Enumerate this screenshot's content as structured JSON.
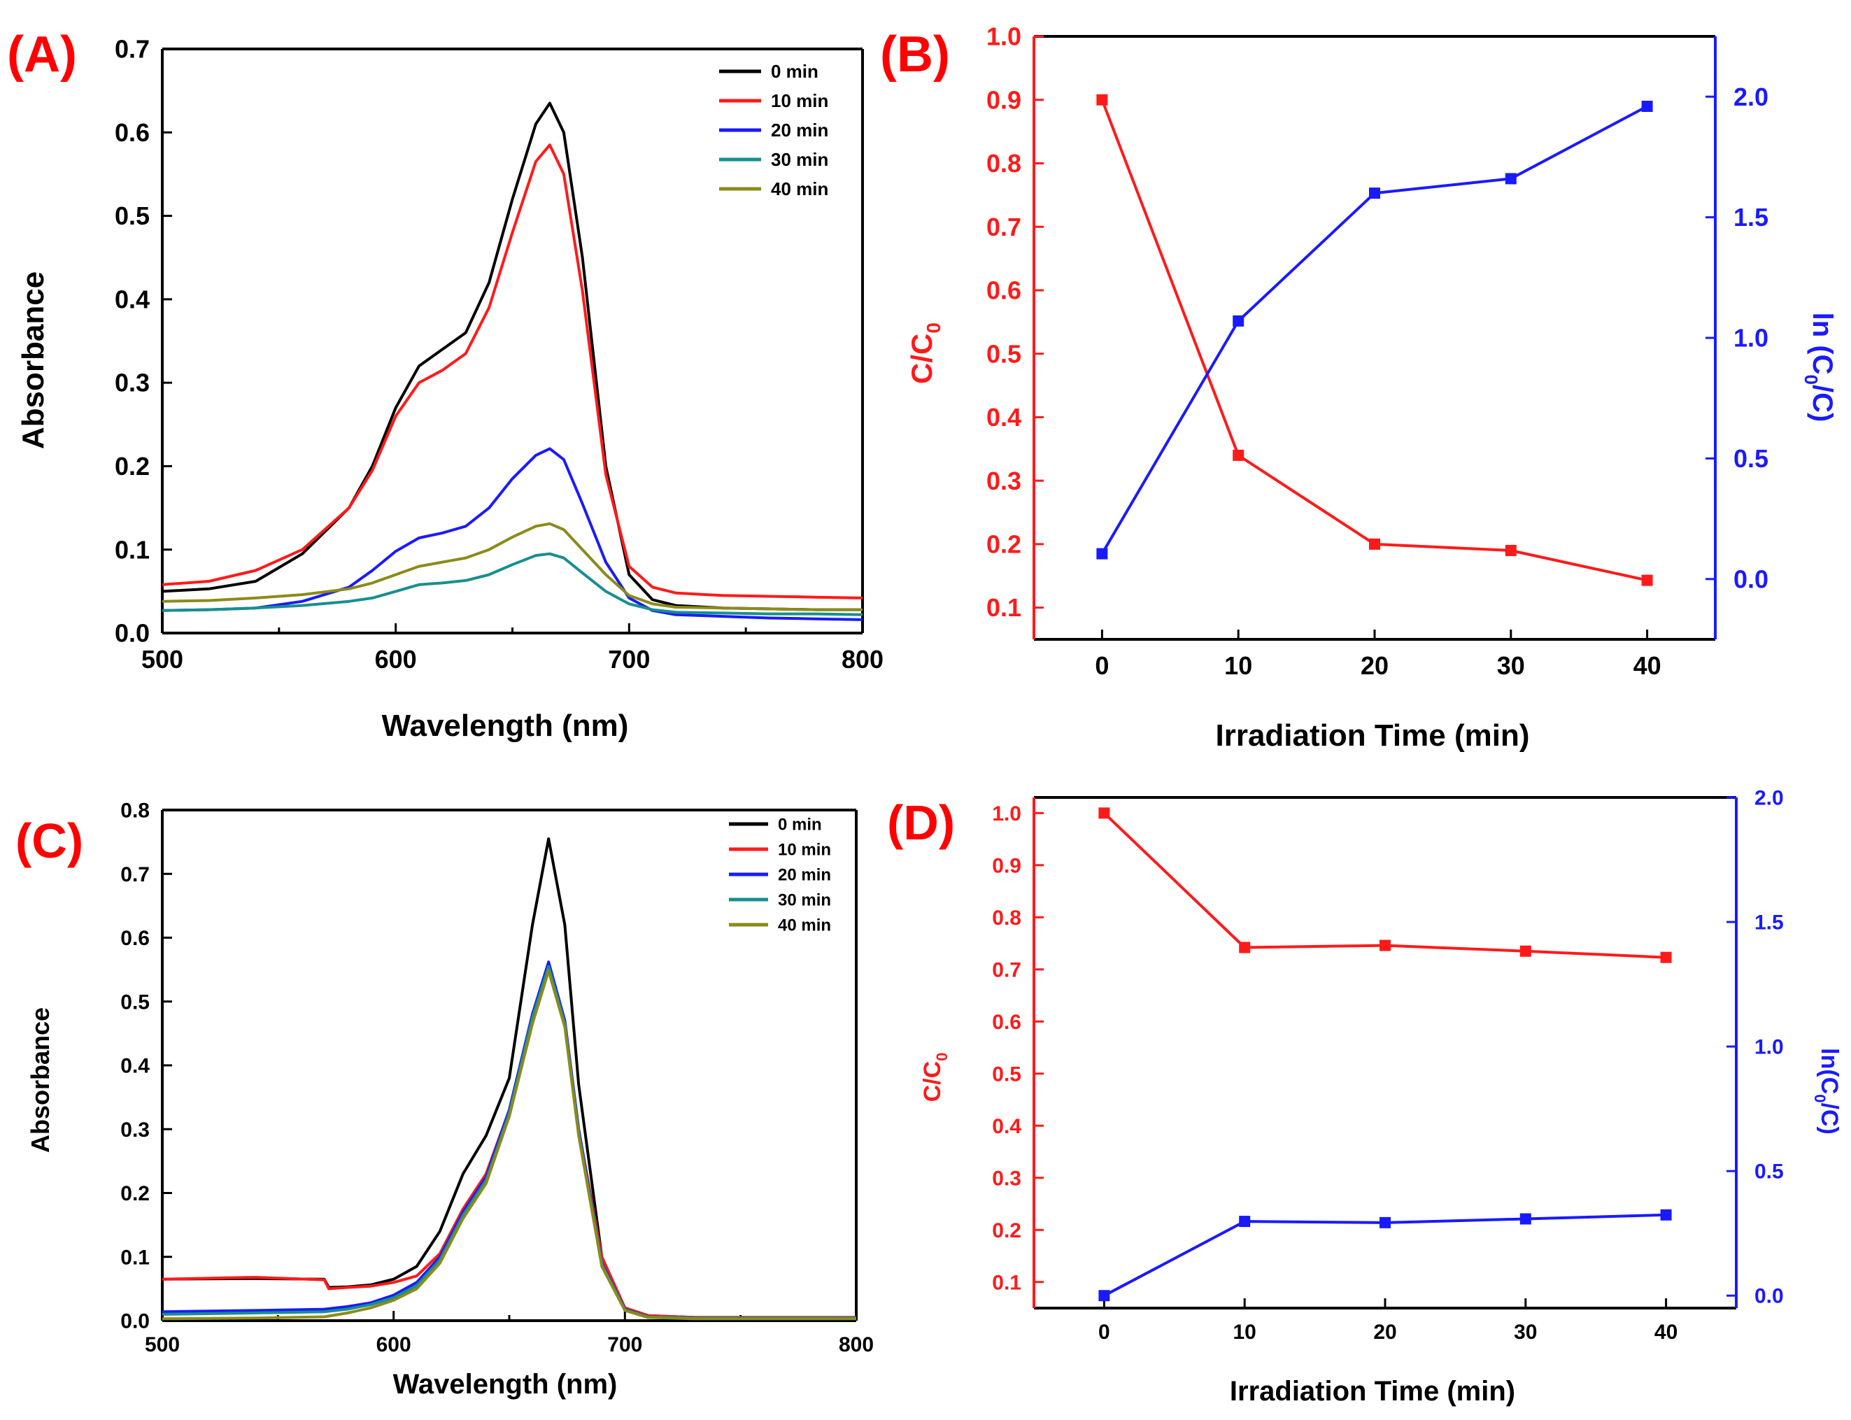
{
  "figure": {
    "colors": {
      "axis": "#000000",
      "c_over_c0": "#ff1a1a",
      "ln_ratio": "#1a1aff",
      "panel_letter": "#ff0000",
      "t0": "#000000",
      "t10": "#ff1a1a",
      "t20": "#1a1aff",
      "t30": "#178f8f",
      "t40": "#8b8b1a"
    }
  },
  "chart_data": [
    {
      "panel": "(A)",
      "type": "line",
      "xlabel": "Wavelength (nm)",
      "ylabel": "Absorbance",
      "xlim": [
        500,
        800
      ],
      "ylim": [
        0,
        0.7
      ],
      "xticks": [
        500,
        600,
        700,
        800
      ],
      "xtick_labels": [
        "500",
        "600",
        "700",
        "800"
      ],
      "yticks": [
        0,
        0.1,
        0.2,
        0.3,
        0.4,
        0.5,
        0.6,
        0.7
      ],
      "ytick_labels": [
        "0.0",
        "0.1",
        "0.2",
        "0.3",
        "0.4",
        "0.5",
        "0.6",
        "0.7"
      ],
      "legend_position": "top-right",
      "series": [
        {
          "name": "0 min",
          "color_key": "t0",
          "x": [
            500,
            520,
            540,
            560,
            580,
            590,
            600,
            610,
            620,
            630,
            640,
            650,
            660,
            666,
            672,
            680,
            690,
            700,
            710,
            720,
            740,
            760,
            780,
            800
          ],
          "y": [
            0.05,
            0.053,
            0.062,
            0.095,
            0.15,
            0.2,
            0.27,
            0.32,
            0.34,
            0.36,
            0.42,
            0.52,
            0.61,
            0.635,
            0.6,
            0.45,
            0.2,
            0.07,
            0.04,
            0.033,
            0.03,
            0.029,
            0.028,
            0.028
          ]
        },
        {
          "name": "10 min",
          "color_key": "t10",
          "x": [
            500,
            520,
            540,
            560,
            580,
            590,
            600,
            610,
            620,
            630,
            640,
            650,
            660,
            666,
            672,
            680,
            690,
            700,
            710,
            720,
            740,
            760,
            780,
            800
          ],
          "y": [
            0.058,
            0.062,
            0.075,
            0.1,
            0.15,
            0.195,
            0.26,
            0.3,
            0.315,
            0.335,
            0.39,
            0.48,
            0.565,
            0.585,
            0.55,
            0.41,
            0.19,
            0.08,
            0.055,
            0.048,
            0.045,
            0.044,
            0.043,
            0.042
          ]
        },
        {
          "name": "20 min",
          "color_key": "t20",
          "x": [
            500,
            520,
            540,
            560,
            580,
            590,
            600,
            610,
            620,
            630,
            640,
            650,
            660,
            666,
            672,
            680,
            690,
            700,
            710,
            720,
            740,
            760,
            780,
            800
          ],
          "y": [
            0.027,
            0.028,
            0.03,
            0.038,
            0.055,
            0.075,
            0.098,
            0.114,
            0.12,
            0.128,
            0.15,
            0.185,
            0.213,
            0.221,
            0.208,
            0.155,
            0.085,
            0.042,
            0.027,
            0.022,
            0.02,
            0.018,
            0.017,
            0.016
          ]
        },
        {
          "name": "30 min",
          "color_key": "t30",
          "x": [
            500,
            520,
            540,
            560,
            580,
            590,
            600,
            610,
            620,
            630,
            640,
            650,
            660,
            666,
            672,
            680,
            690,
            700,
            710,
            720,
            740,
            760,
            780,
            800
          ],
          "y": [
            0.027,
            0.028,
            0.03,
            0.033,
            0.038,
            0.042,
            0.05,
            0.058,
            0.06,
            0.063,
            0.07,
            0.082,
            0.093,
            0.095,
            0.09,
            0.072,
            0.05,
            0.035,
            0.028,
            0.025,
            0.024,
            0.023,
            0.023,
            0.022
          ]
        },
        {
          "name": "40 min",
          "color_key": "t40",
          "x": [
            500,
            520,
            540,
            560,
            580,
            590,
            600,
            610,
            620,
            630,
            640,
            650,
            660,
            666,
            672,
            680,
            690,
            700,
            710,
            720,
            740,
            760,
            780,
            800
          ],
          "y": [
            0.038,
            0.039,
            0.042,
            0.046,
            0.053,
            0.06,
            0.07,
            0.08,
            0.085,
            0.09,
            0.1,
            0.115,
            0.128,
            0.131,
            0.124,
            0.1,
            0.07,
            0.045,
            0.035,
            0.031,
            0.03,
            0.029,
            0.028,
            0.028
          ]
        }
      ]
    },
    {
      "panel": "(B)",
      "type": "line",
      "xlabel": "Irradiation Time (min)",
      "ylabel": "C/C",
      "ylabel_sub": "0",
      "y2label_prefix": "ln (C",
      "y2label_sub": "0",
      "y2label_suffix": "/C)",
      "xlim": [
        -5,
        45
      ],
      "ylim": [
        0.05,
        1.0
      ],
      "y2lim": [
        -0.25,
        2.25
      ],
      "xticks": [
        0,
        10,
        20,
        30,
        40
      ],
      "xtick_labels": [
        "0",
        "10",
        "20",
        "30",
        "40"
      ],
      "yticks": [
        0.1,
        0.2,
        0.3,
        0.4,
        0.5,
        0.6,
        0.7,
        0.8,
        0.9,
        1.0
      ],
      "ytick_labels": [
        "0.1",
        "0.2",
        "0.3",
        "0.4",
        "0.5",
        "0.6",
        "0.7",
        "0.8",
        "0.9",
        "1.0"
      ],
      "y2ticks": [
        0.0,
        0.5,
        1.0,
        1.5,
        2.0
      ],
      "y2tick_labels": [
        "0.0",
        "0.5",
        "1.0",
        "1.5",
        "2.0"
      ],
      "series": [
        {
          "name": "C/C0",
          "axis": "left",
          "color_key": "c_over_c0",
          "x": [
            0,
            10,
            20,
            30,
            40
          ],
          "y": [
            0.9,
            0.34,
            0.2,
            0.19,
            0.143
          ]
        },
        {
          "name": "ln(C0/C)",
          "axis": "right",
          "color_key": "ln_ratio",
          "x": [
            0,
            10,
            20,
            30,
            40
          ],
          "y": [
            0.105,
            1.07,
            1.6,
            1.66,
            1.96
          ]
        }
      ]
    },
    {
      "panel": "(C)",
      "type": "line",
      "xlabel": "Wavelength (nm)",
      "ylabel": "Absorbance",
      "xlim": [
        500,
        800
      ],
      "ylim": [
        0,
        0.8
      ],
      "xticks": [
        500,
        600,
        700,
        800
      ],
      "xtick_labels": [
        "500",
        "600",
        "700",
        "800"
      ],
      "yticks": [
        0,
        0.1,
        0.2,
        0.3,
        0.4,
        0.5,
        0.6,
        0.7,
        0.8
      ],
      "ytick_labels": [
        "0.0",
        "0.1",
        "0.2",
        "0.3",
        "0.4",
        "0.5",
        "0.6",
        "0.7",
        "0.8"
      ],
      "legend_position": "top-right",
      "series": [
        {
          "name": "0 min",
          "color_key": "t0",
          "x": [
            500,
            540,
            570,
            572,
            580,
            590,
            600,
            610,
            620,
            630,
            640,
            650,
            660,
            667,
            674,
            680,
            690,
            700,
            710,
            730,
            760,
            800
          ],
          "y": [
            0.065,
            0.066,
            0.065,
            0.052,
            0.053,
            0.056,
            0.065,
            0.085,
            0.14,
            0.23,
            0.29,
            0.38,
            0.62,
            0.755,
            0.62,
            0.37,
            0.1,
            0.02,
            0.008,
            0.005,
            0.005,
            0.005
          ]
        },
        {
          "name": "10 min",
          "color_key": "t10",
          "x": [
            500,
            540,
            570,
            572,
            580,
            590,
            600,
            610,
            620,
            630,
            640,
            650,
            660,
            667,
            674,
            680,
            690,
            700,
            710,
            730,
            760,
            800
          ],
          "y": [
            0.065,
            0.068,
            0.064,
            0.05,
            0.052,
            0.054,
            0.06,
            0.07,
            0.105,
            0.175,
            0.23,
            0.33,
            0.48,
            0.56,
            0.47,
            0.3,
            0.1,
            0.02,
            0.008,
            0.005,
            0.005,
            0.005
          ]
        },
        {
          "name": "20 min",
          "color_key": "t20",
          "x": [
            500,
            540,
            570,
            580,
            590,
            600,
            610,
            620,
            630,
            640,
            650,
            660,
            667,
            674,
            680,
            690,
            700,
            710,
            730,
            760,
            800
          ],
          "y": [
            0.014,
            0.016,
            0.018,
            0.022,
            0.028,
            0.04,
            0.06,
            0.1,
            0.17,
            0.225,
            0.33,
            0.48,
            0.562,
            0.47,
            0.3,
            0.09,
            0.018,
            0.006,
            0.004,
            0.004,
            0.004
          ]
        },
        {
          "name": "30 min",
          "color_key": "t30",
          "x": [
            500,
            540,
            570,
            580,
            590,
            600,
            610,
            620,
            630,
            640,
            650,
            660,
            667,
            674,
            680,
            690,
            700,
            710,
            730,
            760,
            800
          ],
          "y": [
            0.01,
            0.012,
            0.014,
            0.018,
            0.025,
            0.036,
            0.055,
            0.095,
            0.165,
            0.22,
            0.325,
            0.475,
            0.555,
            0.465,
            0.295,
            0.088,
            0.017,
            0.006,
            0.004,
            0.004,
            0.004
          ]
        },
        {
          "name": "40 min",
          "color_key": "t40",
          "x": [
            500,
            540,
            570,
            580,
            590,
            600,
            610,
            620,
            630,
            640,
            650,
            660,
            667,
            674,
            680,
            690,
            700,
            710,
            730,
            760,
            800
          ],
          "y": [
            0.003,
            0.004,
            0.006,
            0.012,
            0.02,
            0.032,
            0.05,
            0.09,
            0.16,
            0.215,
            0.32,
            0.465,
            0.548,
            0.46,
            0.29,
            0.085,
            0.016,
            0.005,
            0.003,
            0.003,
            0.003
          ]
        }
      ]
    },
    {
      "panel": "(D)",
      "type": "line",
      "xlabel": "Irradiation Time (min)",
      "ylabel": "C/C",
      "ylabel_sub": "0",
      "y2label_prefix": "ln(C",
      "y2label_sub": "0",
      "y2label_suffix": "/C)",
      "xlim": [
        -5,
        45
      ],
      "ylim": [
        0.05,
        1.03
      ],
      "y2lim": [
        -0.05,
        2.0
      ],
      "xticks": [
        0,
        10,
        20,
        30,
        40
      ],
      "xtick_labels": [
        "0",
        "10",
        "20",
        "30",
        "40"
      ],
      "yticks": [
        0.1,
        0.2,
        0.3,
        0.4,
        0.5,
        0.6,
        0.7,
        0.8,
        0.9,
        1.0
      ],
      "ytick_labels": [
        "0.1",
        "0.2",
        "0.3",
        "0.4",
        "0.5",
        "0.6",
        "0.7",
        "0.8",
        "0.9",
        "1.0"
      ],
      "y2ticks": [
        0.0,
        0.5,
        1.0,
        1.5,
        2.0
      ],
      "y2tick_labels": [
        "0.0",
        "0.5",
        "1.0",
        "1.5",
        "2.0"
      ],
      "series": [
        {
          "name": "C/C0",
          "axis": "left",
          "color_key": "c_over_c0",
          "x": [
            0,
            10,
            20,
            30,
            40
          ],
          "y": [
            1.0,
            0.742,
            0.746,
            0.735,
            0.723
          ]
        },
        {
          "name": "ln(C0/C)",
          "axis": "right",
          "color_key": "ln_ratio",
          "x": [
            0,
            10,
            20,
            30,
            40
          ],
          "y": [
            0.0,
            0.298,
            0.293,
            0.308,
            0.324
          ]
        }
      ]
    }
  ]
}
